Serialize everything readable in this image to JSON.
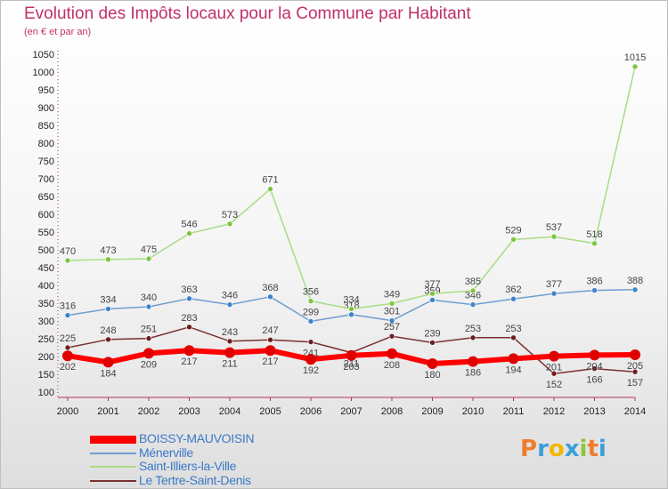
{
  "header": {
    "title": "Evolution des Impôts locaux pour la Commune par Habitant",
    "subtitle": "(en € et par an)"
  },
  "logo": {
    "text": "Proxiti",
    "letter_colors": [
      "#ee7d2c",
      "#3aa0dc",
      "#f2b600",
      "#3aa0dc",
      "#8cc63f",
      "#ee7d2c",
      "#3aa0dc"
    ]
  },
  "chart_data": {
    "type": "line",
    "x": [
      "2000",
      "2001",
      "2002",
      "2003",
      "2004",
      "2005",
      "2006",
      "2007",
      "2008",
      "2009",
      "2010",
      "2011",
      "2012",
      "2013",
      "2014"
    ],
    "ylim": [
      100,
      1050
    ],
    "yticks": [
      100,
      150,
      200,
      250,
      300,
      350,
      400,
      450,
      500,
      550,
      600,
      650,
      700,
      750,
      800,
      850,
      900,
      950,
      1000,
      1050
    ],
    "grid": false,
    "legend_position": "bottom-left",
    "series": [
      {
        "name": "BOISSY-MAUVOISIN",
        "color": "#ff0000",
        "marker": "#e00000",
        "width": 6,
        "radius": 6,
        "values": [
          202,
          184,
          209,
          217,
          211,
          217,
          192,
          203,
          208,
          180,
          186,
          194,
          201,
          204,
          205
        ]
      },
      {
        "name": "Ménerville",
        "color": "#6d9fd0",
        "marker": "#3d84c9",
        "width": 1.5,
        "radius": 3,
        "values": [
          316,
          334,
          340,
          363,
          346,
          368,
          299,
          318,
          301,
          359,
          346,
          362,
          377,
          386,
          388
        ]
      },
      {
        "name": "Saint-Illiers-la-Ville",
        "color": "#a9dc85",
        "marker": "#7cc540",
        "width": 1.5,
        "radius": 3,
        "values": [
          470,
          473,
          475,
          546,
          573,
          671,
          356,
          334,
          349,
          377,
          385,
          529,
          537,
          518,
          1015
        ]
      },
      {
        "name": "Le Tertre-Saint-Denis",
        "color": "#7b3030",
        "marker": "#6b1f1f",
        "width": 1.5,
        "radius": 3,
        "values": [
          225,
          248,
          251,
          283,
          243,
          247,
          241,
          211,
          257,
          239,
          253,
          253,
          152,
          166,
          157
        ]
      }
    ]
  }
}
